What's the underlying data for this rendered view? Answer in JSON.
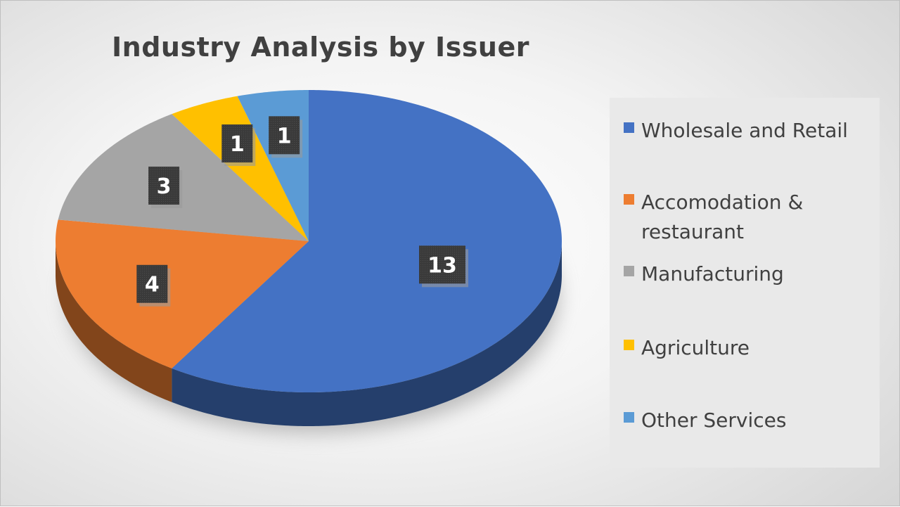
{
  "chart_data": {
    "type": "pie",
    "title": "Industry Analysis by Issuer",
    "categories": [
      "Wholesale and Retail",
      "Accomodation & restaurant",
      "Manufacturing",
      "Agriculture",
      "Other Services"
    ],
    "values": [
      13,
      4,
      3,
      1,
      1
    ],
    "colors": [
      "#4472C4",
      "#ED7D31",
      "#A5A5A5",
      "#FFC000",
      "#5B9BD5"
    ],
    "style": "3d",
    "legend_position": "right",
    "data_labels": true
  }
}
